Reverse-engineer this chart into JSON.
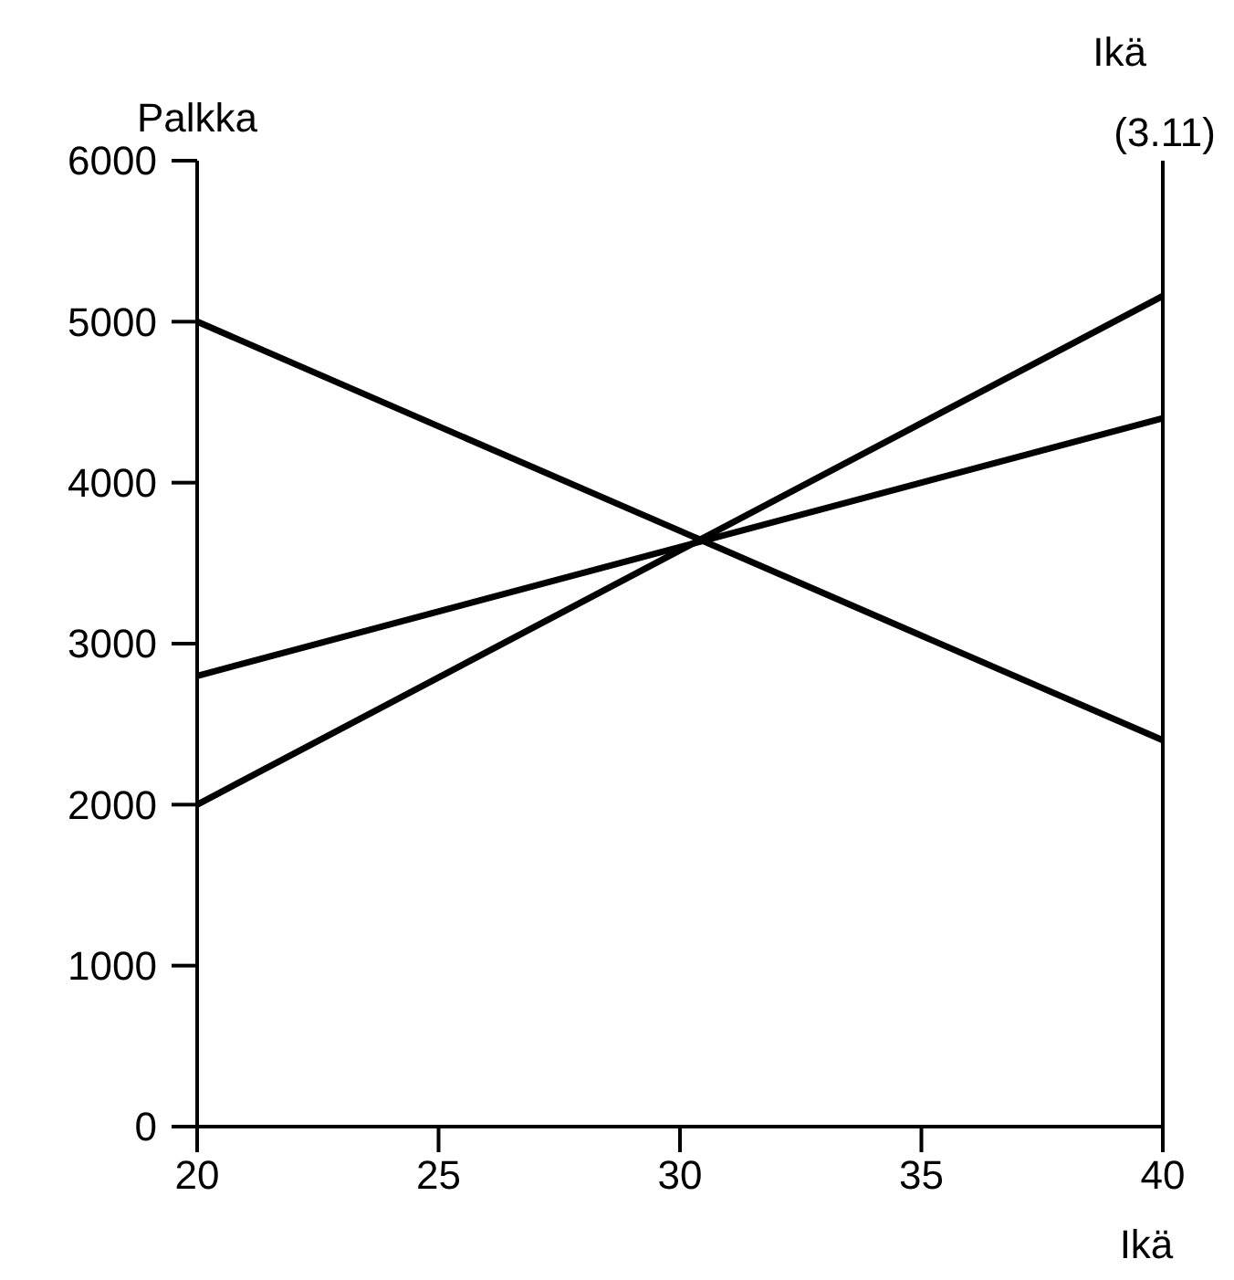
{
  "chart_data": {
    "type": "line",
    "xlabel": "Ikä",
    "ylabel": "Palkka",
    "annotations": [
      "Ikä",
      "(3.11)"
    ],
    "x": [
      20,
      40
    ],
    "series": [
      {
        "color": "#000000",
        "values": [
          5000,
          2400
        ]
      },
      {
        "color": "#000000",
        "values": [
          2800,
          4400
        ]
      },
      {
        "color": "#000000",
        "values": [
          2000,
          5160
        ]
      }
    ],
    "xlim": [
      20,
      40
    ],
    "xticks": [
      20,
      25,
      30,
      35,
      40
    ],
    "ylim": [
      0,
      6000
    ],
    "yticks": [
      0,
      1000,
      2000,
      3000,
      4000,
      5000,
      6000
    ],
    "grid": false,
    "marker": "none",
    "line_style": "solid"
  }
}
